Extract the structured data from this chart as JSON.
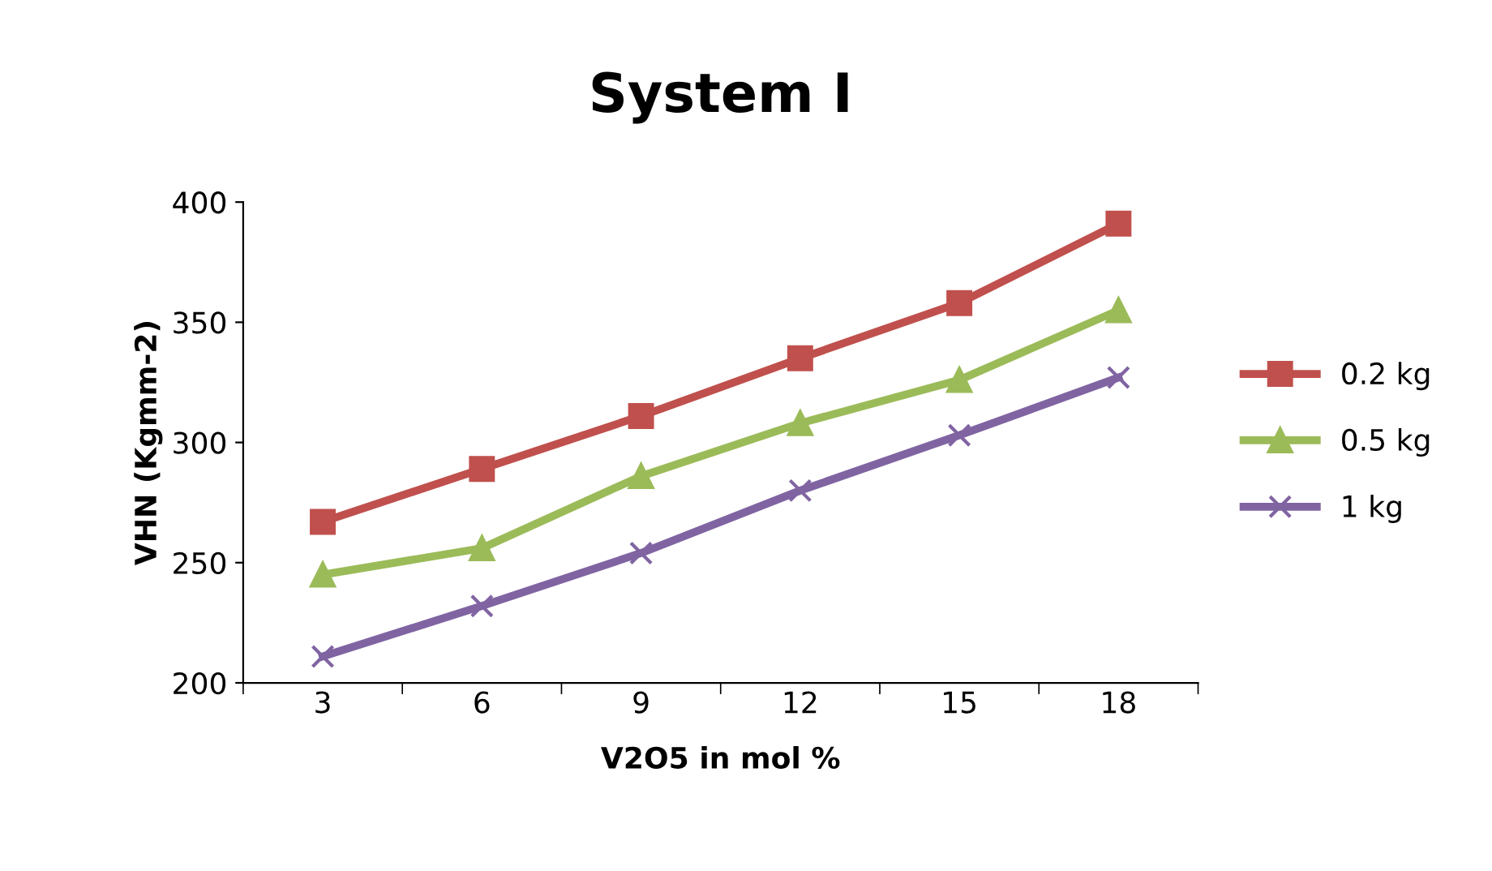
{
  "chart_data": {
    "type": "line",
    "title": "System I",
    "xlabel": "V2O5 in mol %",
    "ylabel": "VHN (Kgmm-2)",
    "categories": [
      "3",
      "6",
      "9",
      "12",
      "15",
      "18"
    ],
    "series": [
      {
        "name": "0.2 kg",
        "color": "#c0504d",
        "marker": "square",
        "values": [
          267,
          289,
          311,
          335,
          358,
          391
        ]
      },
      {
        "name": "0.5 kg",
        "color": "#9bbb59",
        "marker": "triangle",
        "values": [
          245,
          256,
          286,
          308,
          326,
          355
        ]
      },
      {
        "name": "1 kg",
        "color": "#8064a2",
        "marker": "cross",
        "values": [
          211,
          232,
          254,
          280,
          303,
          327
        ]
      }
    ],
    "ylim": [
      200,
      400
    ],
    "yticks": [
      200,
      250,
      300,
      350,
      400
    ],
    "grid": false,
    "legend": "right",
    "line_style": "solid"
  }
}
